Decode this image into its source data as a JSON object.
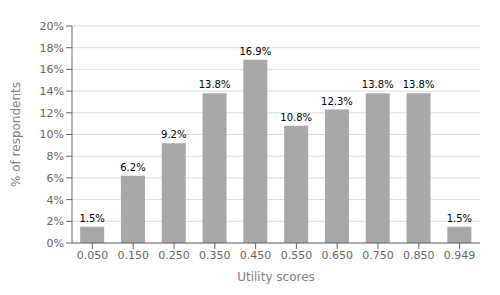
{
  "chart_data": {
    "type": "bar",
    "categories": [
      "0.050",
      "0.150",
      "0.250",
      "0.350",
      "0.450",
      "0.550",
      "0.650",
      "0.750",
      "0.850",
      "0.949"
    ],
    "values": [
      1.5,
      6.2,
      9.2,
      13.8,
      16.9,
      10.8,
      12.3,
      13.8,
      13.8,
      1.5
    ],
    "value_labels": [
      "1.5%",
      "6.2%",
      "9.2%",
      "13.8%",
      "16.9%",
      "10.8%",
      "12.3%",
      "13.8%",
      "13.8%",
      "1.5%"
    ],
    "data_labels": true,
    "color": "#a8a8a8",
    "xlabel": "Utility scores",
    "ylabel": "% of respondents",
    "ylim": [
      0,
      20
    ],
    "yticks": [
      {
        "value": 0,
        "label": "0%"
      },
      {
        "value": 2,
        "label": "2%"
      },
      {
        "value": 4,
        "label": "4%"
      },
      {
        "value": 6,
        "label": "6%"
      },
      {
        "value": 8,
        "label": "8%"
      },
      {
        "value": 10,
        "label": "10%"
      },
      {
        "value": 12,
        "label": "12%"
      },
      {
        "value": 14,
        "label": "14%"
      },
      {
        "value": 16,
        "label": "16%"
      },
      {
        "value": 18,
        "label": "18%"
      },
      {
        "value": 20,
        "label": "20%"
      }
    ],
    "grid": true
  }
}
